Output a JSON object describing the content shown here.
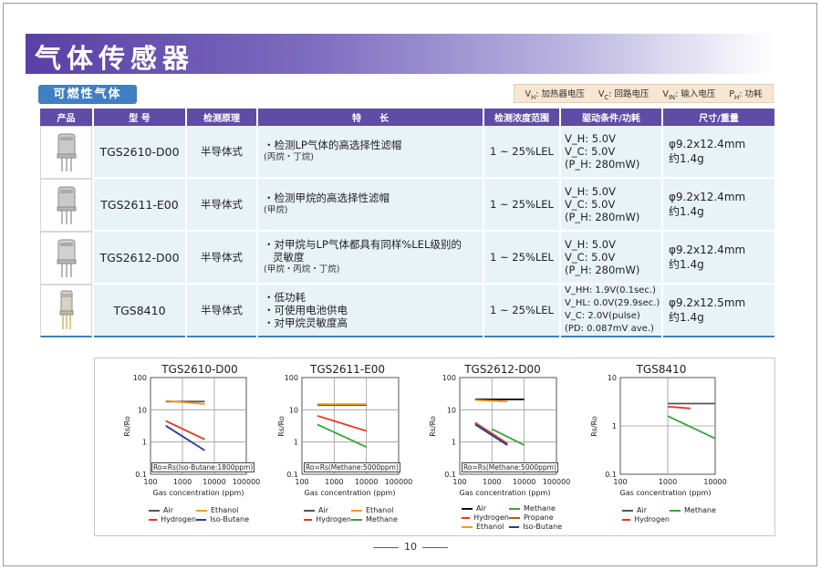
{
  "header": {
    "title": "气体传感器"
  },
  "section": {
    "label": "可燃性气体"
  },
  "legend": [
    {
      "sym": "V",
      "sub": "H",
      "text": "加热器电压"
    },
    {
      "sym": "V",
      "sub": "C",
      "text": "回路电压"
    },
    {
      "sym": "V",
      "sub": "IN",
      "text": "输入电压"
    },
    {
      "sym": "P",
      "sub": "H",
      "text": "功耗"
    }
  ],
  "table": {
    "headers": [
      "产品",
      "型 号",
      "检测原理",
      "特　　长",
      "检测浓度范围",
      "驱动条件/功耗",
      "尺寸/重量"
    ],
    "rows": [
      {
        "model": "TGS2610-D00",
        "principle": "半导体式",
        "features": [
          "・检测LP气体的高选择性滤帽"
        ],
        "features_note": "(丙烷・丁烷)",
        "range": "1 ~ 25%LEL",
        "cond": [
          "V_H: 5.0V",
          "V_C: 5.0V",
          "(P_H: 280mW)"
        ],
        "size": "φ9.2x12.4mm",
        "weight": "约1.4g"
      },
      {
        "model": "TGS2611-E00",
        "principle": "半导体式",
        "features": [
          "・检测甲烷的高选择性滤帽"
        ],
        "features_note": "(甲烷)",
        "range": "1 ~ 25%LEL",
        "cond": [
          "V_H: 5.0V",
          "V_C: 5.0V",
          "(P_H: 280mW)"
        ],
        "size": "φ9.2x12.4mm",
        "weight": "约1.4g"
      },
      {
        "model": "TGS2612-D00",
        "principle": "半导体式",
        "features": [
          "・对甲烷与LP气体都具有同样%LEL级别的",
          "灵敏度"
        ],
        "features_note": "(甲烷・丙烷・丁烷)",
        "range": "1 ~ 25%LEL",
        "cond": [
          "V_H: 5.0V",
          "V_C: 5.0V",
          "(P_H: 280mW)"
        ],
        "size": "φ9.2x12.4mm",
        "weight": "约1.4g"
      },
      {
        "model": "TGS8410",
        "principle": "半导体式",
        "features": [
          "・低功耗",
          "・可使用电池供电",
          "・对甲烷灵敏度高"
        ],
        "features_note": "",
        "range": "1 ~ 25%LEL",
        "cond": [
          "V_HH: 1.9V(0.1sec.)",
          "V_HL: 0.0V(29.9sec.)",
          "V_C: 2.0V(pulse)",
          "(PD: 0.087mV ave.)"
        ],
        "size": "φ9.2x12.5mm",
        "weight": "约1.4g"
      }
    ]
  },
  "chart_data": [
    {
      "type": "line",
      "title": "TGS2610-D00",
      "xlabel": "Gas concentration (ppm)",
      "ylabel": "Rs/Ro",
      "xscale": "log",
      "yscale": "log",
      "xlim": [
        100,
        100000
      ],
      "ylim": [
        0.1,
        100
      ],
      "xticks": [
        "100",
        "1000",
        "10000",
        "100000"
      ],
      "yticks": [
        "100",
        "10",
        "1",
        "0.1"
      ],
      "note": "Ro=Rs(Iso-Butane:1800ppm)",
      "grid": true,
      "series": [
        {
          "name": "Air",
          "color": "#555555",
          "x": [
            300,
            5000
          ],
          "y": [
            18,
            18
          ]
        },
        {
          "name": "Ethanol",
          "color": "#f39c1e",
          "x": [
            300,
            5000
          ],
          "y": [
            19,
            15
          ]
        },
        {
          "name": "Hydrogen",
          "color": "#e8341c",
          "x": [
            300,
            5000
          ],
          "y": [
            4.5,
            1.2
          ]
        },
        {
          "name": "Iso-Butane",
          "color": "#2e3a9a",
          "x": [
            300,
            5000
          ],
          "y": [
            3.2,
            0.55
          ]
        }
      ]
    },
    {
      "type": "line",
      "title": "TGS2611-E00",
      "xlabel": "Gas concentration (ppm)",
      "ylabel": "Rs/Ro",
      "xscale": "log",
      "yscale": "log",
      "xlim": [
        100,
        100000
      ],
      "ylim": [
        0.1,
        100
      ],
      "xticks": [
        "100",
        "1000",
        "10000",
        "100000"
      ],
      "yticks": [
        "100",
        "10",
        "1",
        "0.1"
      ],
      "note": "Ro=Rs(Methane:5000ppm)",
      "grid": true,
      "series": [
        {
          "name": "Air",
          "color": "#555555",
          "x": [
            300,
            10000
          ],
          "y": [
            14,
            14
          ]
        },
        {
          "name": "Ethanol",
          "color": "#f39c1e",
          "x": [
            300,
            10000
          ],
          "y": [
            15,
            15
          ]
        },
        {
          "name": "Hydrogen",
          "color": "#e8341c",
          "x": [
            300,
            10000
          ],
          "y": [
            6.5,
            2.2
          ]
        },
        {
          "name": "Methane",
          "color": "#3aa33a",
          "x": [
            300,
            10000
          ],
          "y": [
            3.5,
            0.7
          ]
        }
      ]
    },
    {
      "type": "line",
      "title": "TGS2612-D00",
      "xlabel": "Gas concentration (ppm)",
      "ylabel": "Rs/Ro",
      "xscale": "log",
      "yscale": "log",
      "xlim": [
        100,
        100000
      ],
      "ylim": [
        0.1,
        100
      ],
      "xticks": [
        "100",
        "1000",
        "10000",
        "100000"
      ],
      "yticks": [
        "100",
        "10",
        "1",
        "0.1"
      ],
      "note": "Ro=Rs(Methane:5000ppm)",
      "grid": true,
      "series": [
        {
          "name": "Air",
          "color": "#111111",
          "x": [
            300,
            10000
          ],
          "y": [
            21,
            21
          ]
        },
        {
          "name": "Methane",
          "color": "#3aa33a",
          "x": [
            1000,
            10000
          ],
          "y": [
            2.5,
            0.8
          ]
        },
        {
          "name": "Hydrogen",
          "color": "#e8341c",
          "x": [
            300,
            3000
          ],
          "y": [
            4.0,
            0.9
          ]
        },
        {
          "name": "Propane",
          "color": "#c0531d",
          "x": [
            300,
            3000
          ],
          "y": [
            3.8,
            0.85
          ]
        },
        {
          "name": "Ethanol",
          "color": "#f39c1e",
          "x": [
            300,
            3000
          ],
          "y": [
            20,
            18
          ]
        },
        {
          "name": "Iso-Butane",
          "color": "#2e3a9a",
          "x": [
            300,
            3000
          ],
          "y": [
            3.5,
            0.8
          ]
        }
      ]
    },
    {
      "type": "line",
      "title": "TGS8410",
      "xlabel": "Gas concentration (ppm)",
      "ylabel": "Rs/Ro",
      "xscale": "log",
      "yscale": "log",
      "xlim": [
        100,
        10000
      ],
      "ylim": [
        0.1,
        10
      ],
      "xticks": [
        "100",
        "1000",
        "10000"
      ],
      "yticks": [
        "10",
        "1",
        "0.1"
      ],
      "note": "",
      "grid": true,
      "series": [
        {
          "name": "Air",
          "color": "#555555",
          "x": [
            1000,
            10000
          ],
          "y": [
            2.9,
            2.9
          ]
        },
        {
          "name": "Methane",
          "color": "#3aa33a",
          "x": [
            1000,
            10000
          ],
          "y": [
            1.6,
            0.55
          ]
        },
        {
          "name": "Hydrogen",
          "color": "#e8341c",
          "x": [
            1000,
            3000
          ],
          "y": [
            2.5,
            2.3
          ]
        }
      ]
    }
  ],
  "page": {
    "number": "10"
  }
}
